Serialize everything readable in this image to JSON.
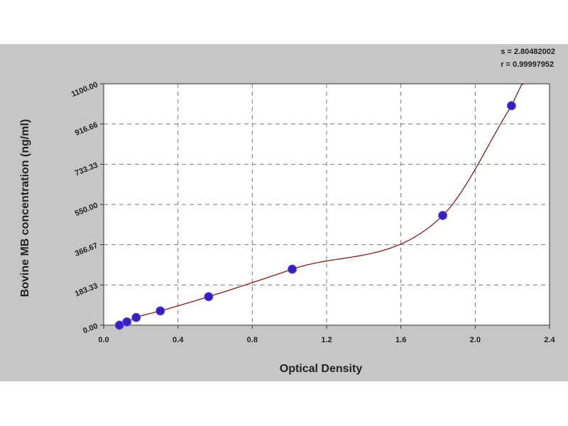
{
  "stats": {
    "s_label": "s = 2.80482002",
    "r_label": "r = 0.99997952"
  },
  "chart_data": {
    "type": "scatter",
    "title": "",
    "xlabel": "Optical Density",
    "ylabel": "Bovine MB concentration (ng/ml)",
    "xlim": [
      0.0,
      2.4
    ],
    "ylim": [
      0.0,
      1100.0
    ],
    "x_ticks": [
      0.0,
      0.4,
      0.8,
      1.2,
      1.6,
      2.0,
      2.4
    ],
    "x_tick_labels": [
      "0.0",
      "0.4",
      "0.8",
      "1.2",
      "1.6",
      "2.0",
      "2.4"
    ],
    "y_ticks": [
      0.0,
      183.33,
      366.67,
      550.0,
      733.33,
      916.66,
      1100.0
    ],
    "y_tick_labels": [
      "0.00",
      "183.33",
      "366.67",
      "550.00",
      "733.33",
      "916.66",
      "1100.00"
    ],
    "grid": true,
    "points": {
      "x": [
        0.085,
        0.125,
        0.175,
        0.305,
        0.565,
        1.015,
        1.825,
        2.195
      ],
      "y": [
        0.0,
        15.0,
        35.0,
        65.0,
        130.0,
        255.0,
        500.0,
        1000.0
      ]
    },
    "fit_curve": {
      "xlim": [
        0.085,
        2.26
      ]
    },
    "colors": {
      "points": "#3a1fc0",
      "curve": "#8b1a1a",
      "grid": "#7a7a7a",
      "background": "#c6c6c6",
      "plot": "#ffffff"
    }
  }
}
